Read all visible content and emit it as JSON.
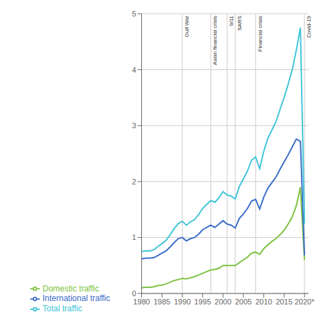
{
  "chart_data": {
    "type": "line",
    "x": [
      1980,
      1981,
      1982,
      1983,
      1984,
      1985,
      1986,
      1987,
      1988,
      1989,
      1990,
      1991,
      1992,
      1993,
      1994,
      1995,
      1996,
      1997,
      1998,
      1999,
      2000,
      2001,
      2002,
      2003,
      2004,
      2005,
      2006,
      2007,
      2008,
      2009,
      2010,
      2011,
      2012,
      2013,
      2014,
      2015,
      2016,
      2017,
      2018,
      2019,
      2020
    ],
    "series": [
      {
        "name": "Domestic traffic",
        "color": "#7dc242",
        "values": [
          0.1,
          0.11,
          0.11,
          0.12,
          0.14,
          0.15,
          0.17,
          0.2,
          0.23,
          0.25,
          0.27,
          0.26,
          0.28,
          0.3,
          0.33,
          0.36,
          0.39,
          0.42,
          0.43,
          0.45,
          0.5,
          0.5,
          0.5,
          0.5,
          0.55,
          0.6,
          0.65,
          0.72,
          0.74,
          0.7,
          0.8,
          0.87,
          0.93,
          0.98,
          1.05,
          1.13,
          1.24,
          1.37,
          1.57,
          1.9,
          0.6
        ]
      },
      {
        "name": "International traffic",
        "color": "#3a6cc8",
        "values": [
          0.62,
          0.63,
          0.63,
          0.64,
          0.68,
          0.72,
          0.76,
          0.83,
          0.91,
          0.98,
          1.0,
          0.94,
          0.98,
          1.0,
          1.06,
          1.14,
          1.18,
          1.22,
          1.18,
          1.24,
          1.3,
          1.24,
          1.22,
          1.17,
          1.34,
          1.42,
          1.52,
          1.65,
          1.68,
          1.51,
          1.72,
          1.88,
          1.98,
          2.08,
          2.22,
          2.35,
          2.48,
          2.62,
          2.76,
          2.72,
          0.68
        ]
      },
      {
        "name": "Total traffic",
        "color": "#40c4d8",
        "values": [
          0.75,
          0.76,
          0.76,
          0.78,
          0.84,
          0.89,
          0.95,
          1.05,
          1.16,
          1.25,
          1.29,
          1.22,
          1.28,
          1.32,
          1.41,
          1.52,
          1.59,
          1.66,
          1.63,
          1.71,
          1.82,
          1.76,
          1.74,
          1.69,
          1.91,
          2.05,
          2.19,
          2.38,
          2.44,
          2.23,
          2.54,
          2.77,
          2.92,
          3.07,
          3.29,
          3.5,
          3.74,
          4.0,
          4.35,
          4.75,
          1.25
        ]
      }
    ],
    "xlim": [
      1980,
      2021
    ],
    "xticks": [
      1980,
      1985,
      1990,
      1995,
      2000,
      2005,
      2010,
      2015,
      {
        "value": 2020,
        "label": "2020*"
      }
    ],
    "ylim": [
      0,
      5
    ],
    "yticks": [
      0,
      1,
      2,
      3,
      4,
      5
    ],
    "grid": true,
    "legend": "bottom",
    "annotations": [
      {
        "x": 1990,
        "text": "Gulf War"
      },
      {
        "x": 1997,
        "text": "Asian financial crisis"
      },
      {
        "x": 2001,
        "text": "9/11"
      },
      {
        "x": 2003,
        "text": "SARS"
      },
      {
        "x": 2008,
        "text": "Financial crisis"
      },
      {
        "x": 2020,
        "text": "Covid-19"
      }
    ]
  }
}
